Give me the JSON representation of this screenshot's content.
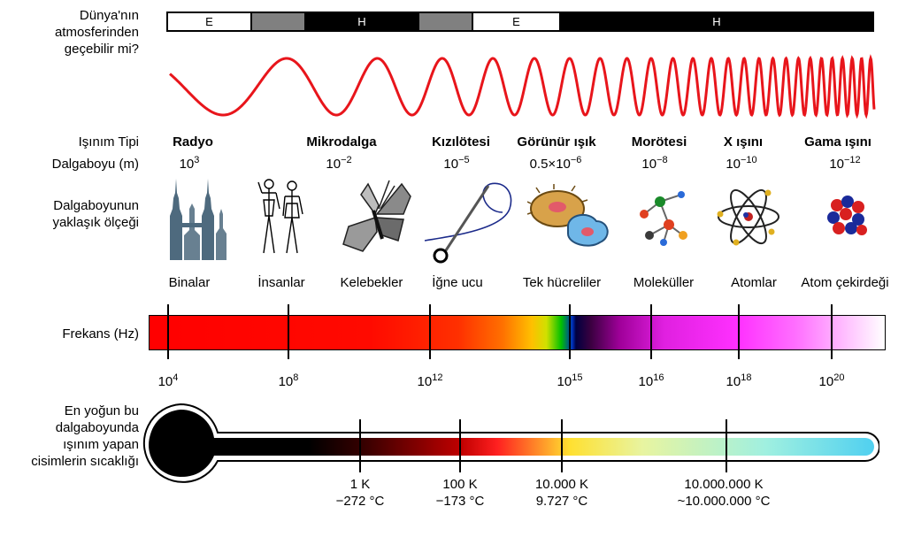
{
  "atmosphere": {
    "question": [
      "Dünya'nın",
      "atmosferinden",
      "geçebilir mi?"
    ],
    "segments": [
      {
        "label": "E",
        "color": "#ffffff",
        "text_color": "#000000"
      },
      {
        "label": "",
        "color": "#808080",
        "text_color": "#000000"
      },
      {
        "label": "H",
        "color": "#000000",
        "text_color": "#ffffff"
      },
      {
        "label": "",
        "color": "#808080",
        "text_color": "#000000"
      },
      {
        "label": "E",
        "color": "#ffffff",
        "text_color": "#000000"
      },
      {
        "label": "H",
        "color": "#000000",
        "text_color": "#ffffff"
      }
    ]
  },
  "row_labels": {
    "type": "Işınım Tipi",
    "wavelength": "Dalgaboyu (m)",
    "scale": [
      "Dalgaboyunun",
      "yaklaşık ölçeği"
    ],
    "frequency": "Frekans (Hz)",
    "temperature": [
      "En yoğun bu",
      "dalgaboyunda",
      "ışınım yapan",
      "cisimlerin sıcaklığı"
    ]
  },
  "radiation_types": [
    {
      "name": "Radyo",
      "wl_base": "10",
      "wl_exp": "3",
      "scale": "Binalar",
      "icon": "buildings-icon"
    },
    {
      "name": "Mikrodalga",
      "wl_base": "10",
      "wl_exp": "−2",
      "scale": "İnsanlar",
      "icon": "humans-icon"
    },
    {
      "name": "",
      "wl_base": "",
      "wl_exp": "",
      "scale": "Kelebekler",
      "icon": "butterfly-icon"
    },
    {
      "name": "Kızılötesi",
      "wl_base": "10",
      "wl_exp": "−5",
      "scale": "İğne ucu",
      "icon": "needle-icon"
    },
    {
      "name": "Görünür ışık",
      "wl_base": "0.5×10",
      "wl_exp": "−6",
      "scale": "Tek hücreliler",
      "icon": "cell-icon"
    },
    {
      "name": "Morötesi",
      "wl_base": "10",
      "wl_exp": "−8",
      "scale": "Moleküller",
      "icon": "molecule-icon"
    },
    {
      "name": "X ışını",
      "wl_base": "10",
      "wl_exp": "−10",
      "scale": "Atomlar",
      "icon": "atom-icon"
    },
    {
      "name": "Gama ışını",
      "wl_base": "10",
      "wl_exp": "−12",
      "scale": "Atom çekirdeği",
      "icon": "nucleus-icon"
    }
  ],
  "frequency_ticks": [
    {
      "base": "10",
      "exp": "4"
    },
    {
      "base": "10",
      "exp": "8"
    },
    {
      "base": "10",
      "exp": "12"
    },
    {
      "base": "10",
      "exp": "15"
    },
    {
      "base": "10",
      "exp": "16"
    },
    {
      "base": "10",
      "exp": "18"
    },
    {
      "base": "10",
      "exp": "20"
    }
  ],
  "temperature_ticks": [
    {
      "kelvin": "1 K",
      "celsius": "−272 °C"
    },
    {
      "kelvin": "100 K",
      "celsius": "−173 °C"
    },
    {
      "kelvin": "10.000 K",
      "celsius": "9.727 °C"
    },
    {
      "kelvin": "10.000.000 K",
      "celsius": "~10.000.000 °C"
    }
  ],
  "colors": {
    "wave": "#e8151b",
    "frequency_gradient": [
      "#ff0000",
      "#ff2a00",
      "#ff6a00",
      "#ffcc00",
      "#00c000",
      "#0000a0",
      "#000000",
      "#ff00ff",
      "#ffffff"
    ],
    "thermometer_gradient": [
      "#000000",
      "#6b0000",
      "#ff1010",
      "#ffff30",
      "#d8f0a0",
      "#60e0f0"
    ]
  }
}
